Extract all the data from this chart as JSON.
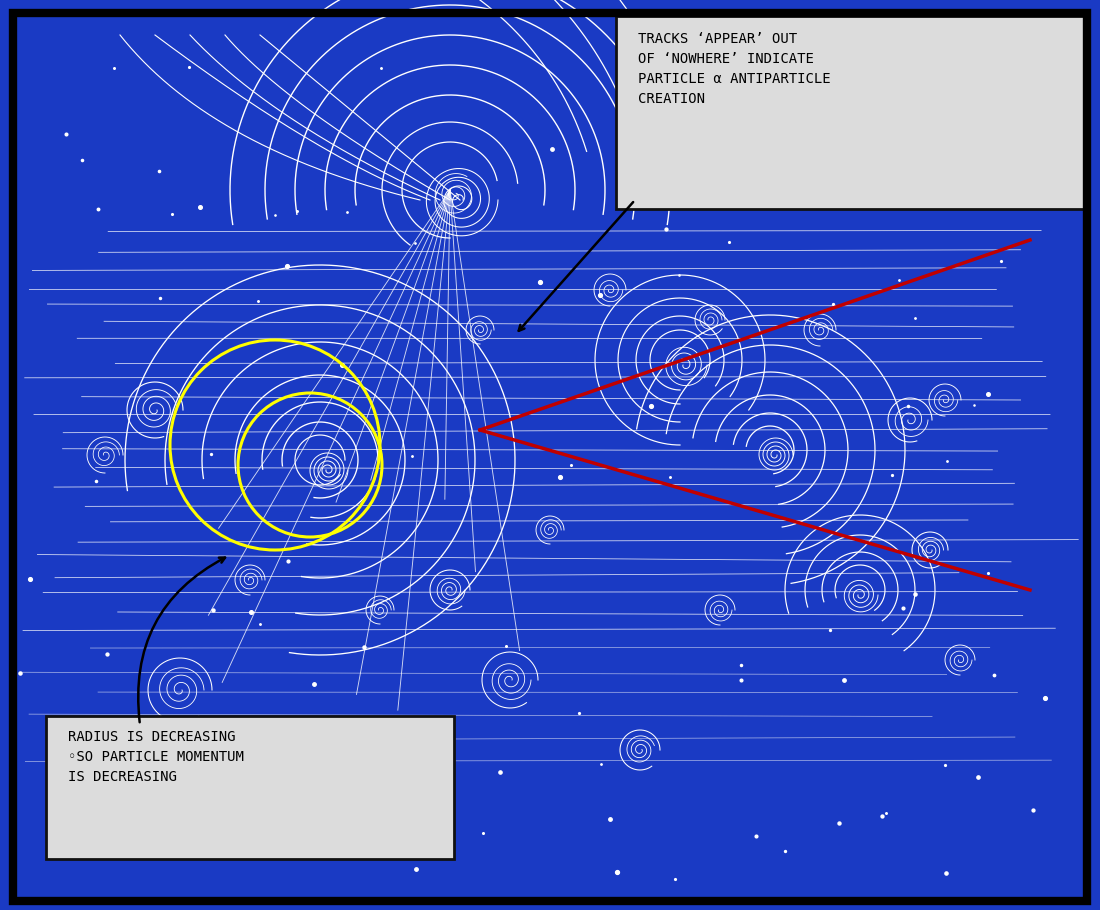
{
  "bg_color": "#1a3ac4",
  "border_color": "#000000",
  "track_color": "#ffffff",
  "yellow_color": "#ffff00",
  "red_color": "#c00000",
  "annotation_bg": "#dcdcdc",
  "annotation_border": "#111111",
  "text1": "TRACKS ‘APPEAR’ OUT\nOF ‘NOWHERE’ INDICATE\nPARTICLE α ANTIPARTICLE\nCREATION",
  "text2": "RADIUS IS DECREASING\n◦SO PARTICLE MOMENTUM\nIS DECREASING",
  "figsize": [
    11.0,
    9.1
  ],
  "dpi": 100
}
